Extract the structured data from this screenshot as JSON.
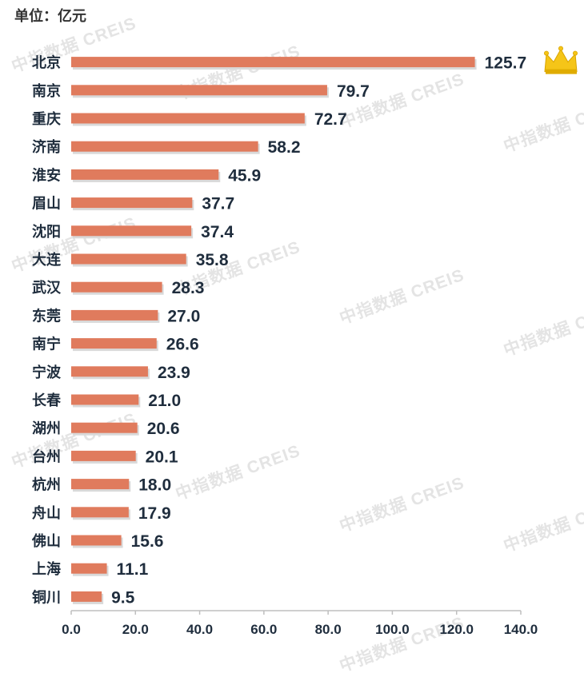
{
  "unit_label": "单位：亿元",
  "watermark": "中指数据 CREIS",
  "colors": {
    "bar": "#E07B5D",
    "bar_shadow": "#d9d9d9",
    "label": "#1f2d3d",
    "axis": "#1f2d3d",
    "crown": "#f5c518"
  },
  "chart_data": {
    "type": "bar",
    "orientation": "horizontal",
    "categories": [
      "北京",
      "南京",
      "重庆",
      "济南",
      "淮安",
      "眉山",
      "沈阳",
      "大连",
      "武汉",
      "东莞",
      "南宁",
      "宁波",
      "长春",
      "湖州",
      "台州",
      "杭州",
      "舟山",
      "佛山",
      "上海",
      "铜川"
    ],
    "values": [
      125.7,
      79.7,
      72.7,
      58.2,
      45.9,
      37.7,
      37.4,
      35.8,
      28.3,
      27.0,
      26.6,
      23.9,
      21.0,
      20.6,
      20.1,
      18.0,
      17.9,
      15.6,
      11.1,
      9.5
    ],
    "value_labels": [
      "125.7",
      "79.7",
      "72.7",
      "58.2",
      "45.9",
      "37.7",
      "37.4",
      "35.8",
      "28.3",
      "27.0",
      "26.6",
      "23.9",
      "21.0",
      "20.6",
      "20.1",
      "18.0",
      "17.9",
      "15.6",
      "11.1",
      "9.5"
    ],
    "xlim": [
      0,
      140
    ],
    "xticks": [
      "0.0",
      "20.0",
      "40.0",
      "60.0",
      "80.0",
      "100.0",
      "120.0",
      "140.0"
    ],
    "grid": false,
    "title": "",
    "xlabel": "",
    "ylabel": "",
    "annotation": {
      "icon": "crown-icon",
      "category": "北京"
    }
  }
}
